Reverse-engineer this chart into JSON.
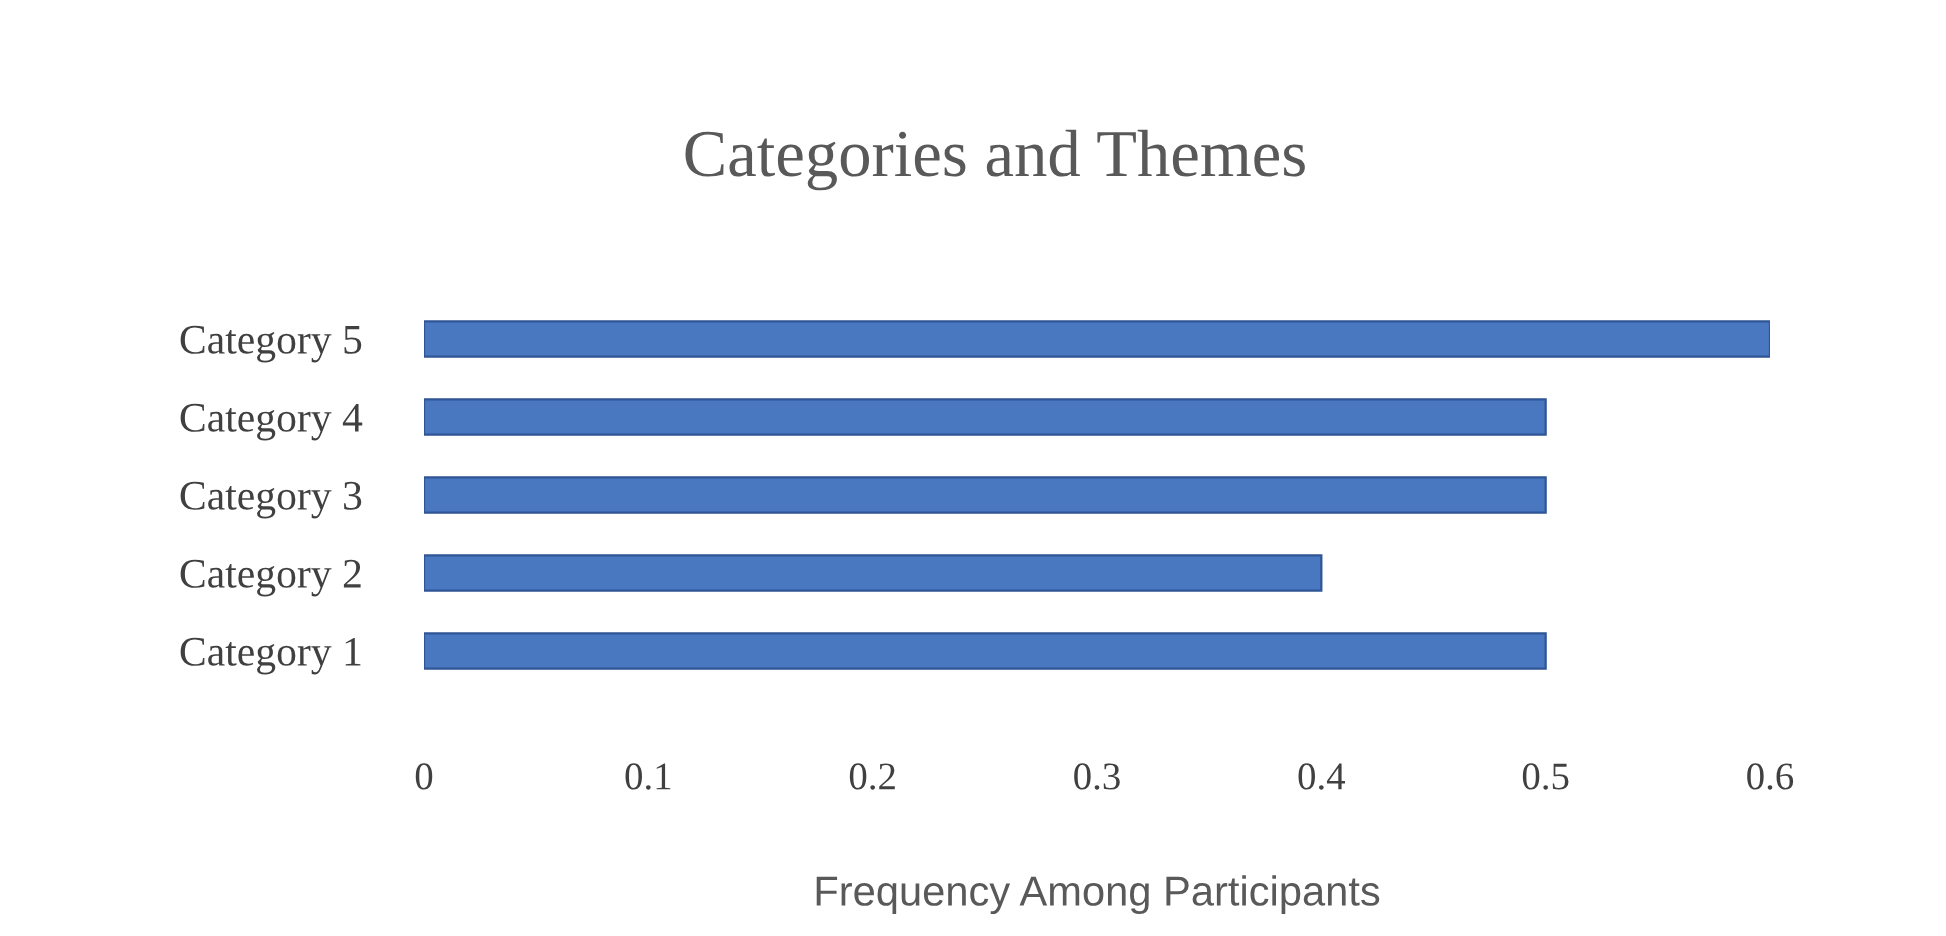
{
  "chart_data": {
    "type": "bar",
    "orientation": "horizontal",
    "title": "Categories and Themes",
    "xlabel": "Frequency Among Participants",
    "categories": [
      "Category 5",
      "Category 4",
      "Category 3",
      "Category 2",
      "Category 1"
    ],
    "values": [
      0.6,
      0.5,
      0.5,
      0.4,
      0.5
    ],
    "color": "#4a78c0",
    "xlim": [
      0,
      0.6
    ],
    "xticks": [
      0,
      0.1,
      0.2,
      0.3,
      0.4,
      0.5,
      0.6
    ],
    "grid": false,
    "legend": false
  }
}
